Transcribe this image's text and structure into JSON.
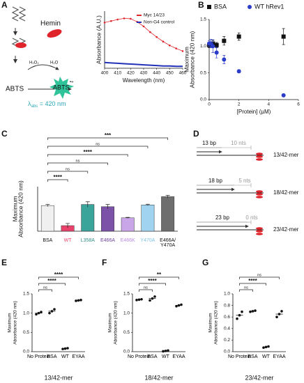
{
  "diagram_a": {
    "panel": "A",
    "hemin": "Hemin",
    "substrate": "ABTS",
    "product": "ABTS",
    "radical": "•+",
    "oxidant": "H₂O₂",
    "water": "H₂O",
    "wavelength": [
      "λ",
      "abs",
      " = 420 nm"
    ]
  },
  "diagram_d": {
    "panel": "D",
    "rows": [
      {
        "duplex": "13 bp",
        "gap": "10 nts",
        "name": "13/42-mer"
      },
      {
        "duplex": "18 bp",
        "gap": "5 nts",
        "name": "18/42-mer"
      },
      {
        "duplex": "23 bp",
        "gap": "0 nts",
        "name": "23/42-mer"
      }
    ]
  },
  "chart_data": [
    {
      "panel": "A",
      "type": "line",
      "x_label": "Wavelength (nm)",
      "y_label": [
        "Absorbance (A.U.)"
      ],
      "x": [
        400,
        405,
        410,
        415,
        420,
        425,
        430,
        435,
        440,
        445,
        450,
        455,
        460
      ],
      "xlim": [
        400,
        460
      ],
      "xticks": [
        400,
        410,
        420,
        430,
        440,
        450,
        460
      ],
      "ylim": [
        0,
        1.5
      ],
      "legend": "upper right",
      "series": [
        {
          "name": "Myc 14/23",
          "color": "#e0242b",
          "marker": "circle",
          "values": [
            1.2,
            1.24,
            1.28,
            1.31,
            1.3,
            1.22,
            1.1,
            0.95,
            0.82,
            0.7,
            0.6,
            0.52,
            0.45
          ]
        },
        {
          "name": "Non-G4 control",
          "color": "#2130b8",
          "values": [
            0.15,
            0.14,
            0.13,
            0.12,
            0.11,
            0.1,
            0.09,
            0.08,
            0.07,
            0.06,
            0.06,
            0.05,
            0.05
          ]
        }
      ]
    },
    {
      "panel": "B",
      "type": "scatter",
      "x_label": "[Protein] (µM)",
      "y_label": [
        "Maximum",
        "Absorbance (420 nm)"
      ],
      "xlim": [
        0,
        6
      ],
      "xticks": [
        0,
        2,
        4,
        6
      ],
      "ylim": [
        0,
        1.5
      ],
      "yticks": [
        {
          "value": 0,
          "label": "0.0"
        },
        0.5,
        {
          "value": 1,
          "label": "1.0"
        },
        1.5
      ],
      "legend": "top",
      "series": [
        {
          "name": "BSA",
          "color": "#111111",
          "marker": "square",
          "x": [
            0,
            0.25,
            0.5,
            1,
            2,
            5
          ],
          "values": [
            1.02,
            1.05,
            1.02,
            1.1,
            1.18,
            1.18
          ],
          "errors": [
            0.05,
            0.06,
            0.05,
            0.08,
            0.07,
            0.15
          ]
        },
        {
          "name": "WT hRev1",
          "color": "#2a3cc8",
          "marker": "circle",
          "x": [
            0,
            0.1,
            0.25,
            0.5,
            1,
            2,
            5
          ],
          "values": [
            1.05,
            1.05,
            1.0,
            0.88,
            0.75,
            0.53,
            0.08
          ],
          "errors": [
            0.05,
            0.08,
            0.12,
            0.1,
            0.08,
            0.03,
            0.01
          ]
        }
      ]
    },
    {
      "panel": "C",
      "type": "bar",
      "y_label": [
        "Maximum",
        "Absorbance (420 nm)"
      ],
      "categories": [
        "BSA",
        "WT",
        "L358A",
        "E466A",
        "E466K",
        "Y470A",
        "E466A/\nY470A"
      ],
      "values": [
        1.15,
        0.25,
        1.2,
        1.1,
        0.6,
        1.18,
        1.55
      ],
      "errors": [
        0.05,
        0.1,
        0.12,
        0.1,
        0.02,
        0.03,
        0.06
      ],
      "colors": [
        "#f0f0f0",
        "#e8416b",
        "#3aa39a",
        "#7b52a8",
        "#c9a6e8",
        "#9fd3ef",
        "#6e6e6e"
      ],
      "label_colors": [
        "#111111",
        "#e8416b",
        "#2f8f86",
        "#6a3f9a",
        "#b88ae0",
        "#7cc2e8",
        "#111111"
      ],
      "ylim": [
        0,
        2
      ],
      "comparisons": [
        {
          "ref": "BSA",
          "vs": "WT",
          "label": "****"
        },
        {
          "ref": "BSA",
          "vs": "L358A",
          "label": "ns"
        },
        {
          "ref": "BSA",
          "vs": "E466A",
          "label": "ns"
        },
        {
          "ref": "BSA",
          "vs": "E466K",
          "label": "****"
        },
        {
          "ref": "BSA",
          "vs": "Y470A",
          "label": "ns"
        },
        {
          "ref": "BSA",
          "vs": "E466A/\nY470A",
          "label": "***"
        }
      ]
    },
    {
      "panel": "E",
      "type": "dot",
      "x_label": "13/42-mer",
      "y_label": [
        "Maximum",
        "Absorbance (420 nm)"
      ],
      "categories": [
        "No Protein",
        "BSA",
        "WT",
        "EYAA"
      ],
      "values": [
        1.0,
        1.05,
        0.08,
        1.33
      ],
      "points": [
        [
          0.97,
          1.0,
          1.03
        ],
        [
          1.0,
          1.05,
          1.1
        ],
        [
          0.07,
          0.08,
          0.09
        ],
        [
          1.32,
          1.33,
          1.34
        ]
      ],
      "ylim": [
        0,
        1.5
      ],
      "yticks": [
        {
          "value": 0,
          "label": "0.0"
        },
        0.5,
        {
          "value": 1,
          "label": "1.0"
        },
        1.5
      ],
      "comparisons": [
        {
          "ref": "No Protein",
          "vs": "BSA",
          "label": "ns"
        },
        {
          "ref": "No Protein",
          "vs": "WT",
          "label": "****"
        },
        {
          "ref": "No Protein",
          "vs": "EYAA",
          "label": "****"
        }
      ]
    },
    {
      "panel": "F",
      "type": "dot",
      "x_label": "18/42-mer",
      "y_label": [
        "Maximum",
        "Absorbance (420 nm)"
      ],
      "categories": [
        "No Protein",
        "BSA",
        "WT",
        "EYAA"
      ],
      "values": [
        1.35,
        1.38,
        0.02,
        1.2
      ],
      "points": [
        [
          1.34,
          1.35,
          1.36
        ],
        [
          1.33,
          1.38,
          1.43
        ],
        [
          0.01,
          0.02,
          0.03
        ],
        [
          1.18,
          1.2,
          1.22
        ]
      ],
      "ylim": [
        0,
        1.5
      ],
      "yticks": [
        {
          "value": 0,
          "label": "0.0"
        },
        0.5,
        {
          "value": 1,
          "label": "1.0"
        },
        1.5
      ],
      "comparisons": [
        {
          "ref": "No Protein",
          "vs": "BSA",
          "label": "ns"
        },
        {
          "ref": "No Protein",
          "vs": "WT",
          "label": "****"
        },
        {
          "ref": "No Protein",
          "vs": "EYAA",
          "label": "**"
        }
      ]
    },
    {
      "panel": "G",
      "type": "dot",
      "x_label": "23/42-mer",
      "y_label": [
        "Maximum",
        "Absorbance (420 nm)"
      ],
      "categories": [
        "No Protein",
        "BSA",
        "WT",
        "EYAA"
      ],
      "values": [
        0.63,
        0.7,
        0.08,
        0.65
      ],
      "points": [
        [
          0.57,
          0.63,
          0.69
        ],
        [
          0.69,
          0.7,
          0.71
        ],
        [
          0.07,
          0.08,
          0.09
        ],
        [
          0.6,
          0.65,
          0.7
        ]
      ],
      "ylim": [
        0,
        1.0
      ],
      "yticks": [
        {
          "value": 0,
          "label": "0.0"
        },
        0.2,
        0.4,
        0.6,
        0.8,
        {
          "value": 1,
          "label": "1.0"
        }
      ],
      "comparisons": [
        {
          "ref": "No Protein",
          "vs": "BSA",
          "label": "ns"
        },
        {
          "ref": "No Protein",
          "vs": "WT",
          "label": "****"
        },
        {
          "ref": "No Protein",
          "vs": "EYAA",
          "label": "ns"
        }
      ]
    }
  ]
}
